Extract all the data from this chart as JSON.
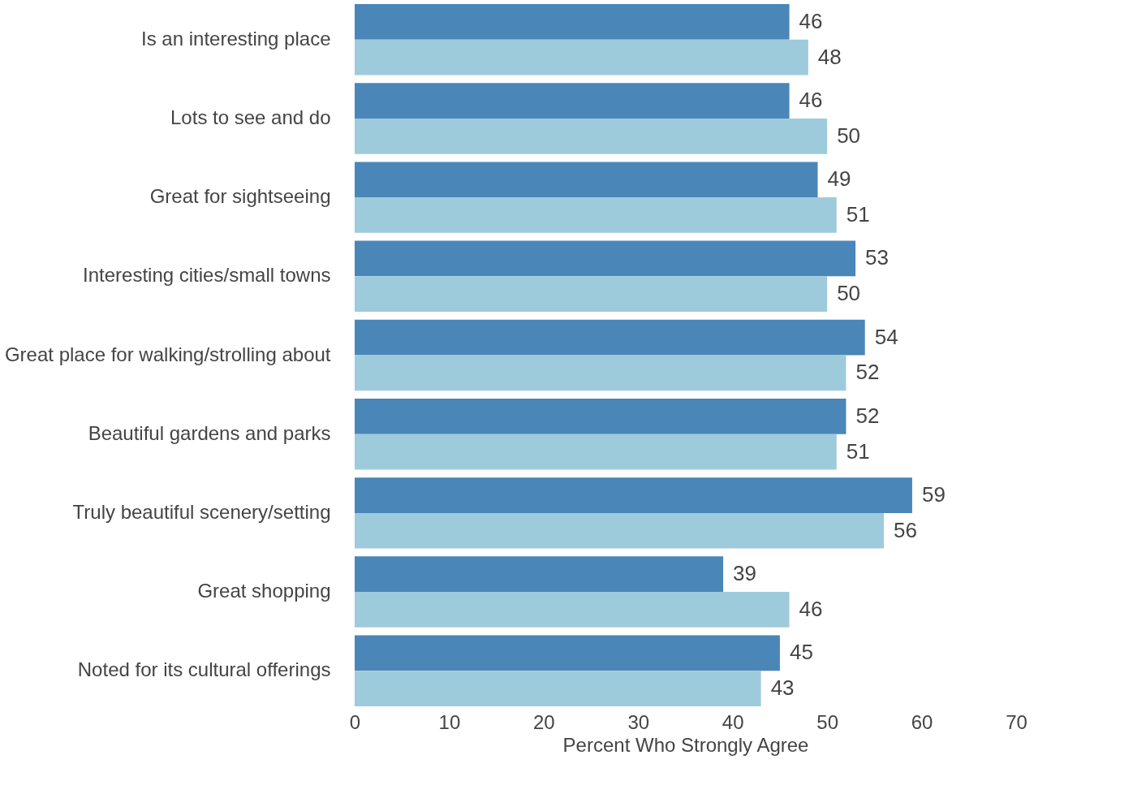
{
  "chart_data": {
    "type": "bar",
    "orientation": "horizontal",
    "xlabel": "Percent Who Strongly Agree",
    "categories": [
      "Is an interesting place",
      "Lots to see and do",
      "Great for sightseeing",
      "Interesting cities/small towns",
      "Great place for walking/strolling about",
      "Beautiful gardens and parks",
      "Truly beautiful scenery/setting",
      "Great shopping",
      "Noted for its cultural offerings"
    ],
    "series": [
      {
        "color": "#4a86b8",
        "values": [
          46,
          46,
          49,
          53,
          54,
          52,
          59,
          39,
          45
        ]
      },
      {
        "color": "#9ecbdc",
        "values": [
          48,
          50,
          51,
          50,
          52,
          51,
          56,
          46,
          43
        ]
      }
    ],
    "xlim": [
      0,
      70
    ],
    "xticks": [
      0,
      10,
      20,
      30,
      40,
      50,
      60,
      70
    ],
    "data_labels": true,
    "grid": false,
    "legend": false
  }
}
